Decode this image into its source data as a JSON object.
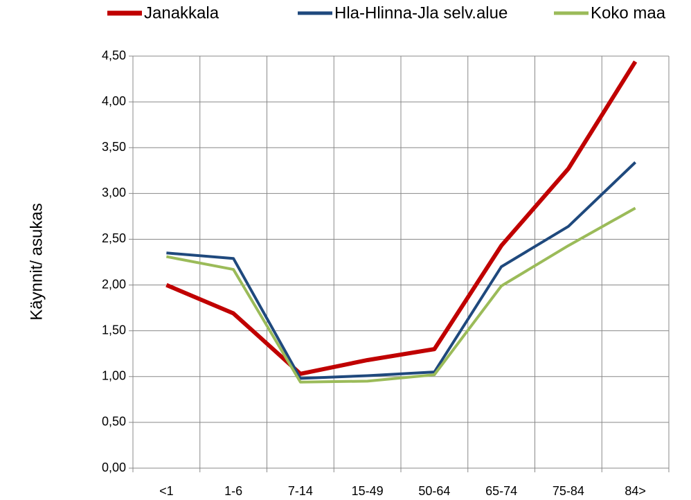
{
  "chart_data": {
    "type": "line",
    "y_label": "Käynnit/ asukas",
    "categories": [
      "<1",
      "1-6",
      "7-14",
      "15-49",
      "50-64",
      "65-74",
      "75-84",
      "84>"
    ],
    "series": [
      {
        "name": "Janakkala",
        "color": "#c00000",
        "values": [
          2.0,
          1.69,
          1.03,
          1.18,
          1.3,
          2.43,
          3.27,
          4.44
        ]
      },
      {
        "name": "Hla-Hlinna-Jla selv.alue",
        "color": "#1f497d",
        "values": [
          2.35,
          2.29,
          0.98,
          1.01,
          1.05,
          2.2,
          2.64,
          3.34
        ]
      },
      {
        "name": "Koko maa",
        "color": "#9bbb59",
        "values": [
          2.31,
          2.17,
          0.94,
          0.95,
          1.02,
          1.99,
          2.43,
          2.84
        ]
      }
    ],
    "ylim": [
      0,
      4.5
    ],
    "yticks": [
      {
        "value": 0,
        "label": "0,00"
      },
      {
        "value": 0.5,
        "label": "0,50"
      },
      {
        "value": 1,
        "label": "1,00"
      },
      {
        "value": 1.5,
        "label": "1,50"
      },
      {
        "value": 2,
        "label": "2,00"
      },
      {
        "value": 2.5,
        "label": "2,50"
      },
      {
        "value": 3,
        "label": "3,00"
      },
      {
        "value": 3.5,
        "label": "3,50"
      },
      {
        "value": 4,
        "label": "4,00"
      },
      {
        "value": 4.5,
        "label": "4,50"
      }
    ],
    "grid": true,
    "legend": "top"
  }
}
